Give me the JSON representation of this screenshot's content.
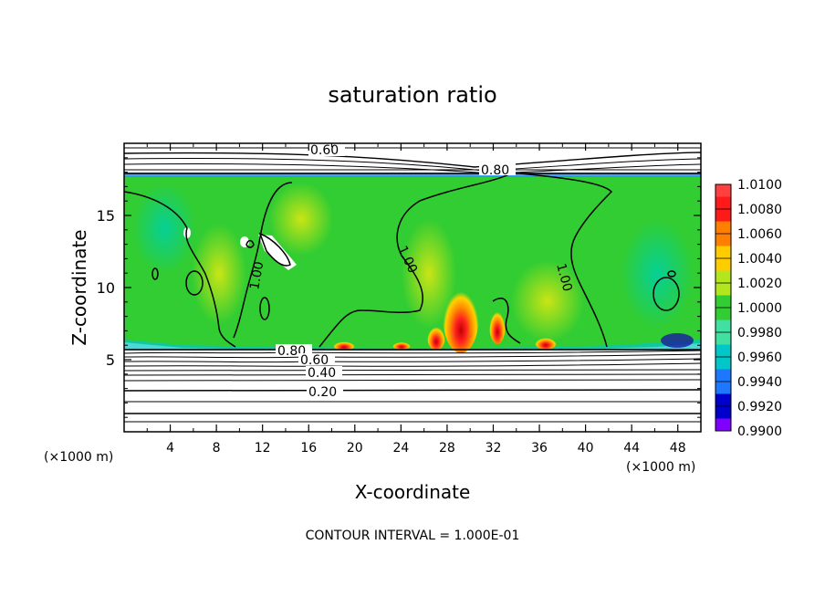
{
  "chart_data": {
    "type": "heatmap",
    "title": "saturation ratio",
    "xlabel": "X-coordinate",
    "ylabel": "Z-coordinate",
    "x_unit_left": "(×1000 m)",
    "x_unit_right": "(×1000 m)",
    "xlim": [
      0,
      50
    ],
    "ylim": [
      0,
      20
    ],
    "x_ticks": [
      4,
      8,
      12,
      16,
      20,
      24,
      28,
      32,
      36,
      40,
      44,
      48
    ],
    "y_ticks": [
      5,
      10,
      15
    ],
    "colorbar": {
      "min": 0.99,
      "max": 1.01,
      "labels": [
        "1.0100",
        "1.0080",
        "1.0060",
        "1.0040",
        "1.0020",
        "1.0000",
        "0.9980",
        "0.9960",
        "0.9940",
        "0.9920",
        "0.9900"
      ],
      "colors": [
        "#ff4040",
        "#ff1a1a",
        "#ff8000",
        "#ffcc00",
        "#b4e61e",
        "#32cd32",
        "#40e0a0",
        "#00c8c8",
        "#1e78ff",
        "#0000cd",
        "#7f00ff"
      ]
    },
    "contour_labels": [
      {
        "text": "0.60",
        "x": 14.9,
        "z": 19.5
      },
      {
        "text": "0.80",
        "x": 28.4,
        "z": 18.2
      },
      {
        "text": "1.00",
        "x": 11.6,
        "z": 11.3
      },
      {
        "text": "1.00",
        "x": 24.0,
        "z": 11.5
      },
      {
        "text": "1.00",
        "x": 38.3,
        "z": 10.7
      },
      {
        "text": "0.80",
        "x": 14.5,
        "z": 5.6
      },
      {
        "text": "0.60",
        "x": 17.1,
        "z": 5.0
      },
      {
        "text": "0.40",
        "x": 17.2,
        "z": 4.1
      },
      {
        "text": "0.20",
        "x": 17.2,
        "z": 2.7
      }
    ],
    "footnote": "CONTOUR INTERVAL = 1.000E-01"
  }
}
